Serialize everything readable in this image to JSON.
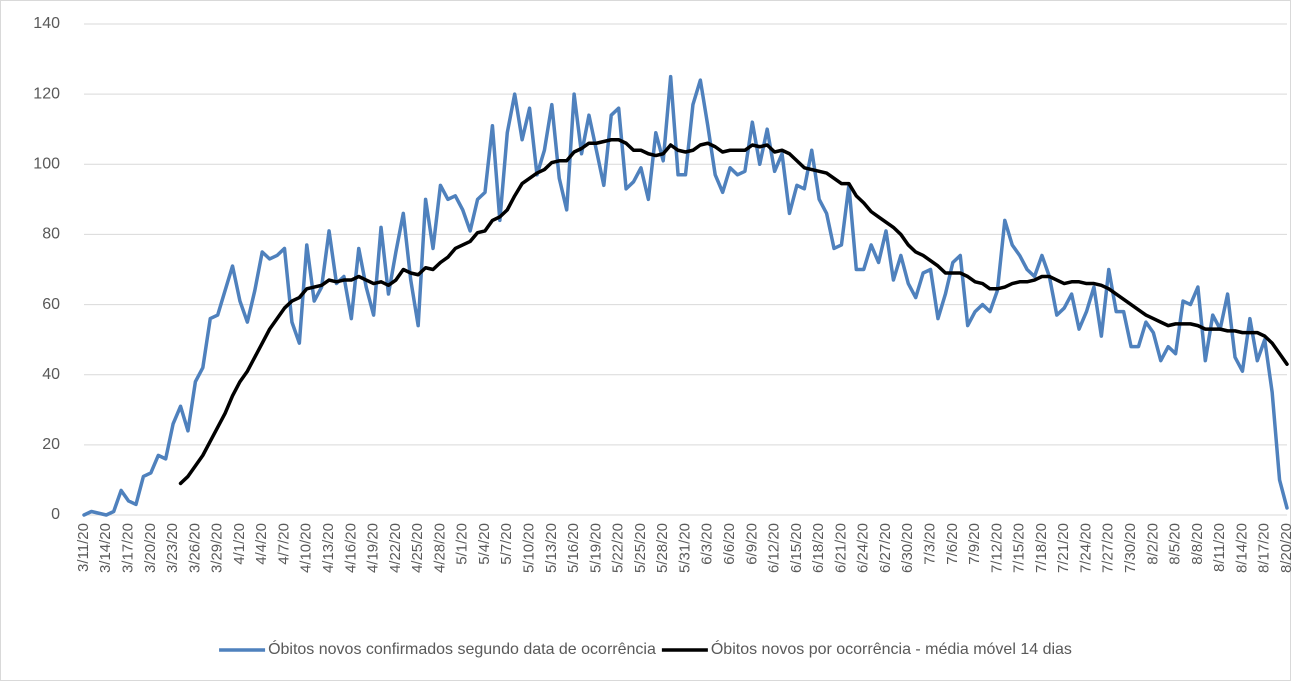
{
  "chart_data": {
    "type": "line",
    "categories": [
      "3/11/20",
      null,
      null,
      "3/14/20",
      null,
      null,
      "3/17/20",
      null,
      null,
      "3/20/20",
      null,
      null,
      "3/23/20",
      null,
      null,
      "3/26/20",
      null,
      null,
      "3/29/20",
      null,
      null,
      "4/1/20",
      null,
      null,
      "4/4/20",
      null,
      null,
      "4/7/20",
      null,
      null,
      "4/10/20",
      null,
      null,
      "4/13/20",
      null,
      null,
      "4/16/20",
      null,
      null,
      "4/19/20",
      null,
      null,
      "4/22/20",
      null,
      null,
      "4/25/20",
      null,
      null,
      "4/28/20",
      null,
      null,
      "5/1/20",
      null,
      null,
      "5/4/20",
      null,
      null,
      "5/7/20",
      null,
      null,
      "5/10/20",
      null,
      null,
      "5/13/20",
      null,
      null,
      "5/16/20",
      null,
      null,
      "5/19/20",
      null,
      null,
      "5/22/20",
      null,
      null,
      "5/25/20",
      null,
      null,
      "5/28/20",
      null,
      null,
      "5/31/20",
      null,
      null,
      "6/3/20",
      null,
      null,
      "6/6/20",
      null,
      null,
      "6/9/20",
      null,
      null,
      "6/12/20",
      null,
      null,
      "6/15/20",
      null,
      null,
      "6/18/20",
      null,
      null,
      "6/21/20",
      null,
      null,
      "6/24/20",
      null,
      null,
      "6/27/20",
      null,
      null,
      "6/30/20",
      null,
      null,
      "7/3/20",
      null,
      null,
      "7/6/20",
      null,
      null,
      "7/9/20",
      null,
      null,
      "7/12/20",
      null,
      null,
      "7/15/20",
      null,
      null,
      "7/18/20",
      null,
      null,
      "7/21/20",
      null,
      null,
      "7/24/20",
      null,
      null,
      "7/27/20",
      null,
      null,
      "7/30/20",
      null,
      null,
      "8/2/20",
      null,
      null,
      "8/5/20",
      null,
      null,
      "8/8/20",
      null,
      null,
      "8/11/20",
      null,
      null,
      "8/14/20",
      null,
      null,
      "8/17/20",
      null,
      null,
      "8/20/20"
    ],
    "series": [
      {
        "name": "Óbitos novos confirmados segundo data de ocorrência",
        "color": "#4f81bd",
        "values": [
          0,
          1,
          0.5,
          0,
          1,
          7,
          4,
          3,
          11,
          12,
          17,
          16,
          26,
          31,
          24,
          38,
          42,
          56,
          57,
          64,
          71,
          61,
          55,
          64,
          75,
          73,
          74,
          76,
          55,
          49,
          77,
          61,
          65,
          81,
          66,
          68,
          56,
          76,
          65,
          57,
          82,
          63,
          75,
          86,
          67,
          54,
          90,
          76,
          94,
          90,
          91,
          87,
          81,
          90,
          92,
          111,
          84,
          109,
          120,
          107,
          116,
          97,
          104,
          117,
          96,
          87,
          120,
          103,
          114,
          104,
          94,
          114,
          116,
          93,
          95,
          99,
          90,
          109,
          101,
          125,
          97,
          97,
          117,
          124,
          111,
          97,
          92,
          99,
          97,
          98,
          112,
          100,
          110,
          98,
          103,
          86,
          94,
          93,
          104,
          90,
          86,
          76,
          77,
          94,
          70,
          70,
          77,
          72,
          81,
          67,
          74,
          66,
          62,
          69,
          70,
          56,
          63,
          72,
          74,
          54,
          58,
          60,
          58,
          64,
          84,
          77,
          74,
          70,
          68,
          74,
          68,
          57,
          59,
          63,
          53,
          58,
          65,
          51,
          70,
          58,
          58,
          48,
          48,
          55,
          52,
          44,
          48,
          46,
          61,
          60,
          65,
          44,
          57,
          53,
          63,
          45,
          41,
          56,
          44,
          50,
          35,
          10,
          2
        ]
      },
      {
        "name": "Óbitos novos por ocorrência - média móvel 14 dias",
        "color": "#000000",
        "values": [
          null,
          null,
          null,
          null,
          null,
          null,
          null,
          null,
          null,
          null,
          null,
          null,
          null,
          9,
          11,
          14,
          17,
          21,
          25,
          29,
          34,
          38,
          41,
          45,
          49,
          53,
          56,
          59,
          61,
          62,
          64.5,
          65,
          65.5,
          67,
          66.5,
          67,
          67,
          68,
          67,
          66,
          66.5,
          65.5,
          67,
          70,
          69,
          68.5,
          70.5,
          70,
          72,
          73.5,
          76,
          77,
          78,
          80.5,
          81,
          84,
          85,
          87,
          91,
          94.5,
          96,
          97.5,
          98.5,
          100.5,
          101,
          101,
          103.5,
          104.5,
          106,
          106,
          106.5,
          107,
          107,
          106,
          104,
          104,
          103,
          102.5,
          103,
          105.5,
          104,
          103.5,
          104,
          105.5,
          106,
          105,
          103.5,
          104,
          104,
          104,
          105.5,
          105,
          105.5,
          103.5,
          104,
          103,
          101,
          99,
          98.5,
          98,
          97.5,
          96,
          94.5,
          94.5,
          91,
          89,
          86.5,
          85,
          83.5,
          82,
          80,
          77,
          75,
          74,
          72.5,
          71,
          69,
          69,
          69,
          68,
          66.5,
          66,
          64.5,
          64.5,
          65,
          66,
          66.5,
          66.5,
          67,
          68,
          68,
          67,
          66,
          66.5,
          66.5,
          66,
          66,
          65.5,
          64.5,
          63,
          61.5,
          60,
          58.5,
          57,
          56,
          55,
          54,
          54.5,
          54.5,
          54.5,
          54,
          53,
          53,
          53,
          52.5,
          52.5,
          52,
          52,
          52,
          51,
          49,
          46,
          43
        ]
      }
    ],
    "ylim": [
      0,
      140
    ],
    "yticks": [
      0,
      20,
      40,
      60,
      80,
      100,
      120,
      140
    ],
    "grid": true,
    "legend": "bottom"
  }
}
